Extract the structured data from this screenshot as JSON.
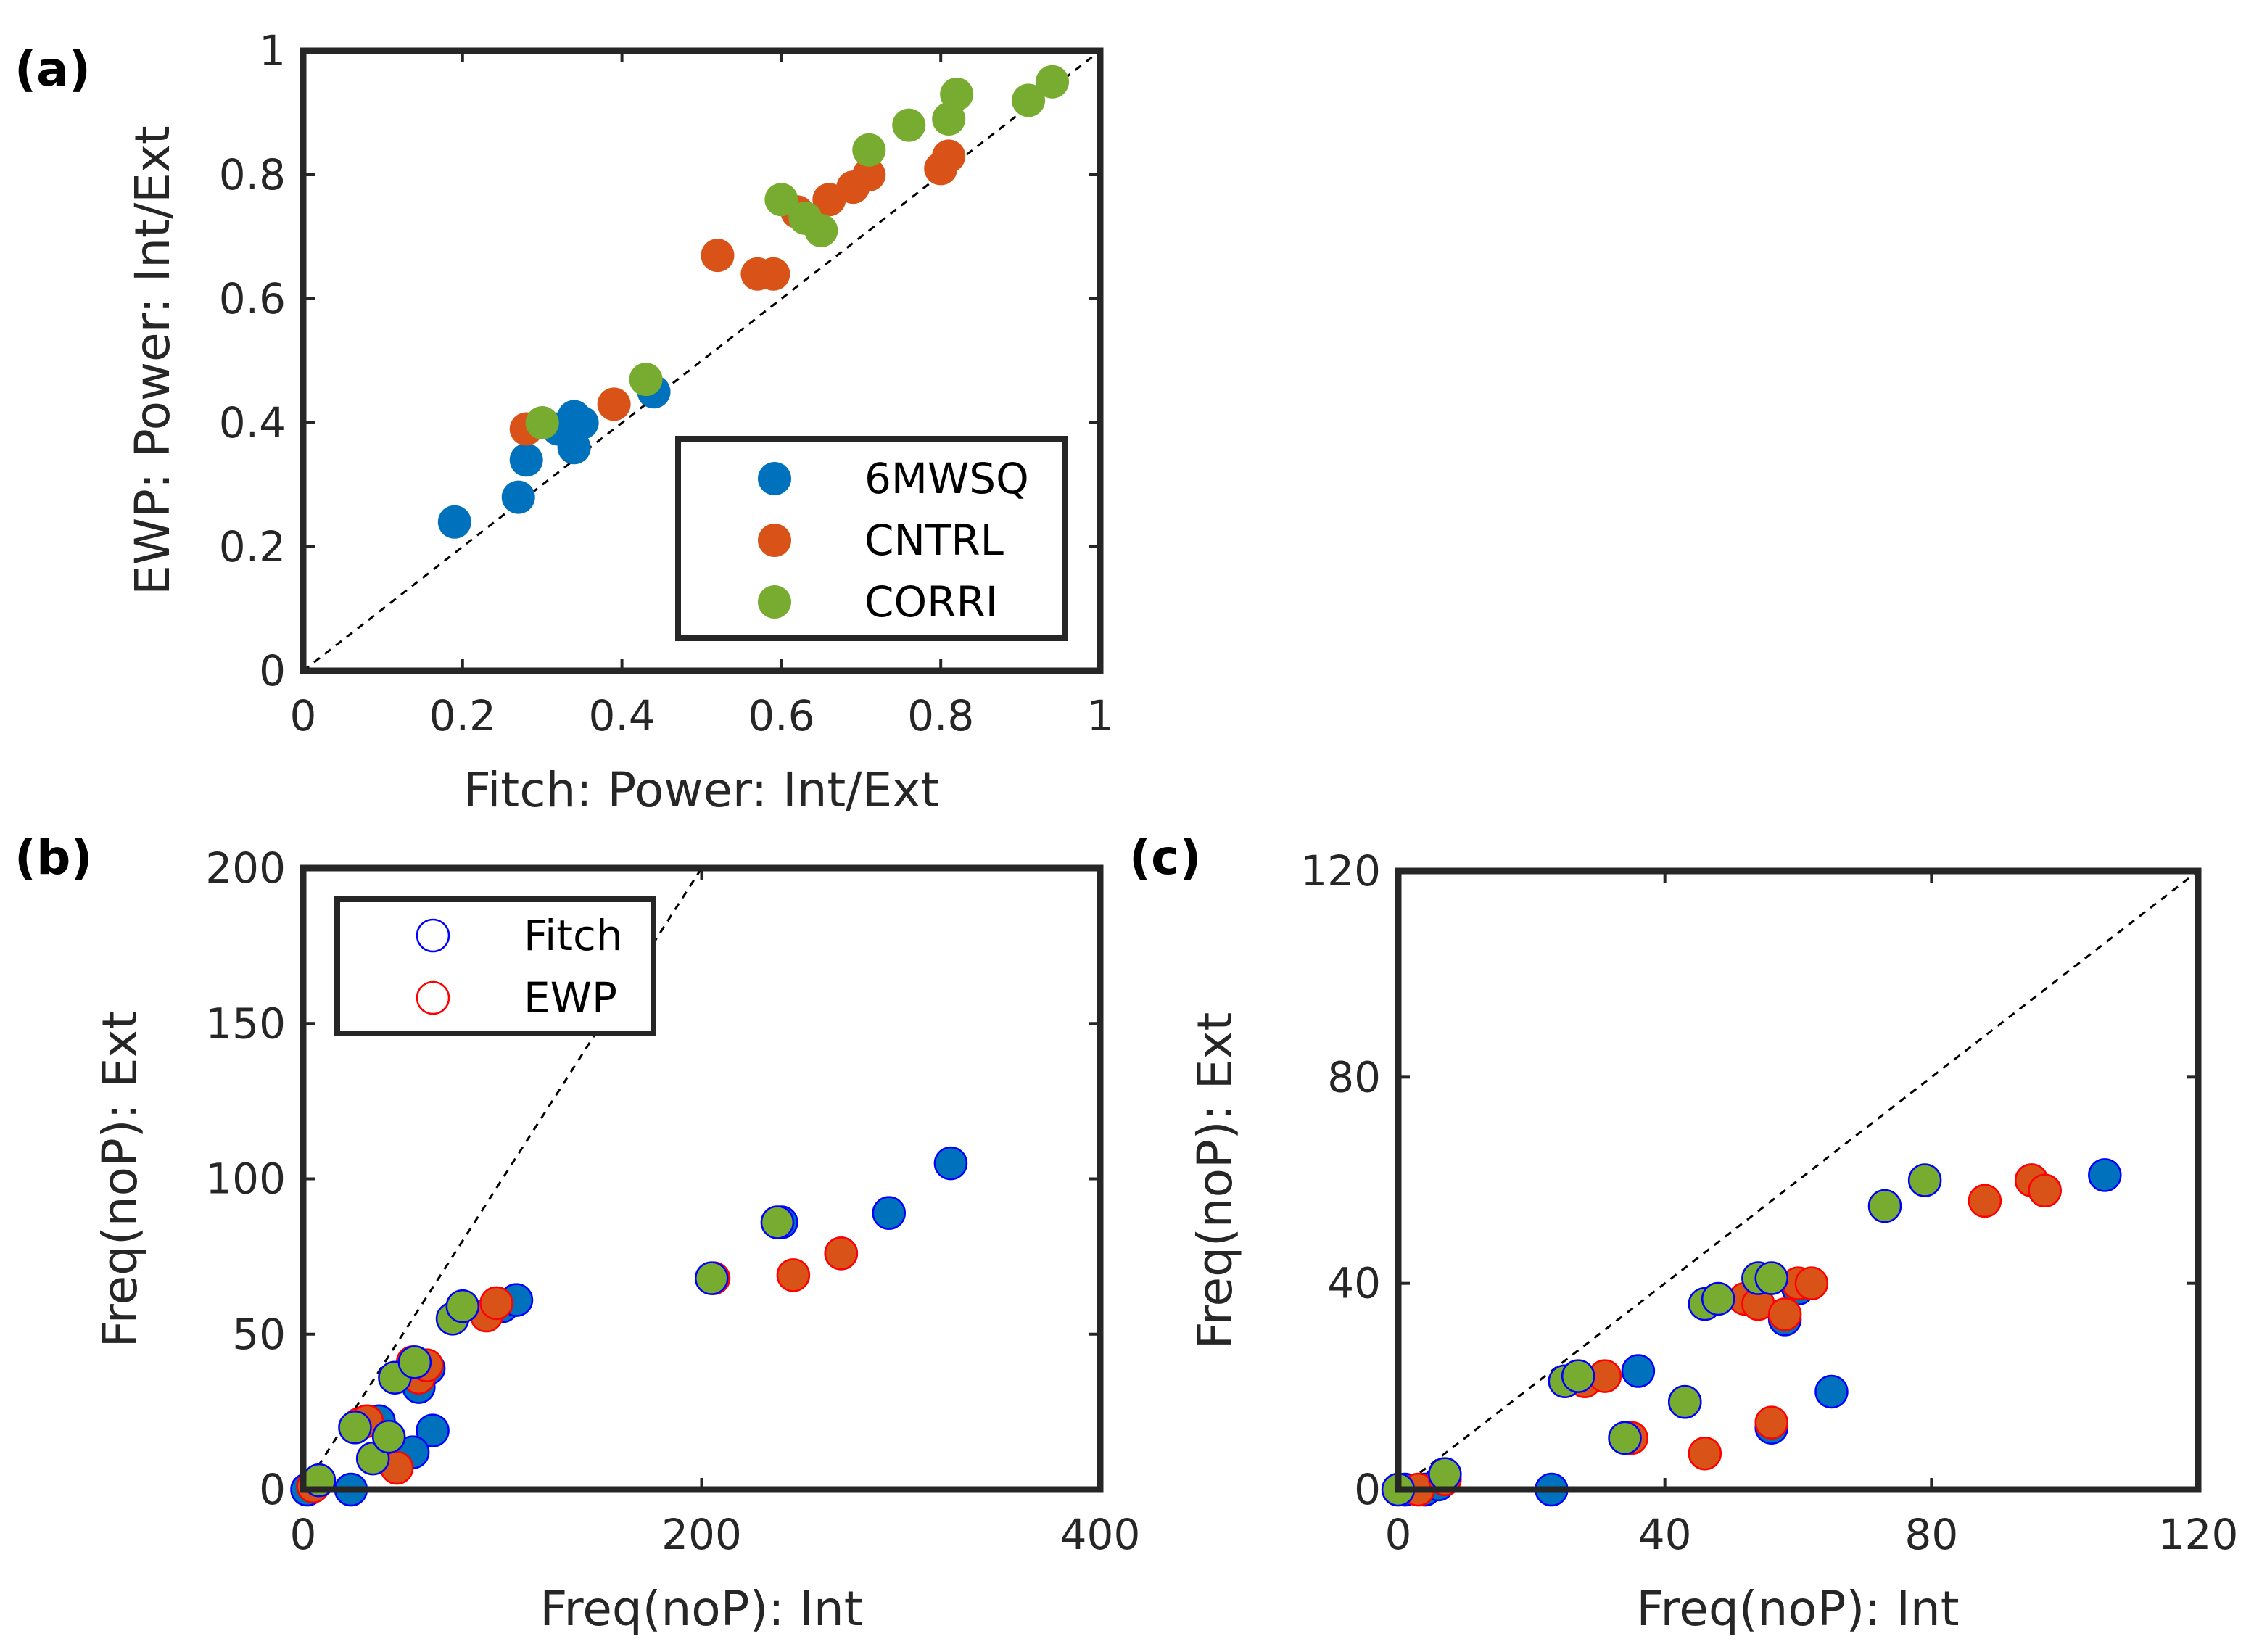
{
  "chart_data": [
    {
      "panel_label": "(a)",
      "type": "scatter",
      "xlabel": "Fitch: Power: Int/Ext",
      "ylabel": "EWP: Power: Int/Ext",
      "xlim": [
        0,
        1
      ],
      "ylim": [
        0,
        1
      ],
      "xticks": [
        0,
        0.2,
        0.4,
        0.6,
        0.8,
        1
      ],
      "yticks": [
        0,
        0.2,
        0.4,
        0.6,
        0.8,
        1
      ],
      "xtick_labels": [
        "0",
        "0.2",
        "0.4",
        "0.6",
        "0.8",
        "1"
      ],
      "ytick_labels": [
        "0",
        "0.2",
        "0.4",
        "0.6",
        "0.8",
        "1"
      ],
      "diagonal": true,
      "legend": "bottom-right",
      "series": [
        {
          "name": "6MWSQ",
          "color": "#0072BD",
          "points": [
            [
              0.19,
              0.24
            ],
            [
              0.27,
              0.28
            ],
            [
              0.28,
              0.34
            ],
            [
              0.32,
              0.39
            ],
            [
              0.34,
              0.41
            ],
            [
              0.35,
              0.4
            ],
            [
              0.34,
              0.36
            ],
            [
              0.44,
              0.45
            ]
          ]
        },
        {
          "name": "CNTRL",
          "color": "#D95319",
          "points": [
            [
              0.28,
              0.39
            ],
            [
              0.39,
              0.43
            ],
            [
              0.52,
              0.67
            ],
            [
              0.57,
              0.64
            ],
            [
              0.59,
              0.64
            ],
            [
              0.62,
              0.74
            ],
            [
              0.66,
              0.76
            ],
            [
              0.69,
              0.78
            ],
            [
              0.71,
              0.8
            ],
            [
              0.8,
              0.81
            ],
            [
              0.81,
              0.83
            ]
          ]
        },
        {
          "name": "CORRI",
          "color": "#77AC30",
          "points": [
            [
              0.3,
              0.4
            ],
            [
              0.43,
              0.47
            ],
            [
              0.6,
              0.76
            ],
            [
              0.63,
              0.73
            ],
            [
              0.65,
              0.71
            ],
            [
              0.71,
              0.84
            ],
            [
              0.76,
              0.88
            ],
            [
              0.81,
              0.89
            ],
            [
              0.82,
              0.93
            ],
            [
              0.91,
              0.92
            ],
            [
              0.94,
              0.95
            ]
          ]
        }
      ]
    },
    {
      "panel_label": "(b)",
      "type": "scatter",
      "xlabel": "Freq(noP): Int",
      "ylabel": "Freq(noP): Ext",
      "xlim": [
        0,
        400
      ],
      "ylim": [
        0,
        200
      ],
      "xticks": [
        0,
        200,
        400
      ],
      "yticks": [
        0,
        50,
        100,
        150,
        200
      ],
      "xtick_labels": [
        "0",
        "200",
        "400"
      ],
      "ytick_labels": [
        "0",
        "50",
        "100",
        "150",
        "200"
      ],
      "diagonal": true,
      "legend": "top-left",
      "legend_entries": [
        {
          "label": "Fitch",
          "color": "#0000FF"
        },
        {
          "label": "EWP",
          "color": "#FF0000"
        }
      ],
      "series": [
        {
          "name": "6MWSQ",
          "color": "#0072BD",
          "edge": "#0000FF",
          "points": [
            [
              2,
              0
            ],
            [
              24,
              0
            ],
            [
              38,
              22
            ],
            [
              65,
              19
            ],
            [
              58,
              33
            ],
            [
              63,
              39
            ],
            [
              55,
              12
            ],
            [
              100,
              59
            ],
            [
              107,
              61
            ],
            [
              240,
              86
            ],
            [
              270,
              76
            ],
            [
              294,
              89
            ],
            [
              325,
              105
            ]
          ]
        },
        {
          "name": "CNTRL",
          "color": "#D95319",
          "edge": "#FF0000",
          "points": [
            [
              5,
              1
            ],
            [
              28,
              21
            ],
            [
              32,
              22
            ],
            [
              47,
              7
            ],
            [
              55,
              41
            ],
            [
              58,
              36
            ],
            [
              62,
              40
            ],
            [
              92,
              56
            ],
            [
              97,
              60
            ],
            [
              246,
              69
            ],
            [
              206,
              68
            ],
            [
              270,
              76
            ]
          ]
        },
        {
          "name": "CORRI",
          "color": "#77AC30",
          "edge": "#0000FF",
          "points": [
            [
              8,
              3
            ],
            [
              26,
              20
            ],
            [
              35,
              10
            ],
            [
              43,
              17
            ],
            [
              46,
              36
            ],
            [
              56,
              41
            ],
            [
              75,
              55
            ],
            [
              80,
              59
            ],
            [
              205,
              68
            ],
            [
              238,
              86
            ]
          ]
        }
      ]
    },
    {
      "panel_label": "(c)",
      "type": "scatter",
      "xlabel": "Freq(noP): Int",
      "ylabel": "Freq(noP): Ext",
      "xlim": [
        0,
        120
      ],
      "ylim": [
        0,
        120
      ],
      "xticks": [
        0,
        40,
        80,
        120
      ],
      "yticks": [
        0,
        40,
        80,
        120
      ],
      "xtick_labels": [
        "0",
        "40",
        "80",
        "120"
      ],
      "ytick_labels": [
        "0",
        "40",
        "80",
        "120"
      ],
      "diagonal": true,
      "series": [
        {
          "name": "6MWSQ",
          "color": "#0072BD",
          "edge": "#0000FF",
          "points": [
            [
              1,
              0
            ],
            [
              4,
              0
            ],
            [
              6,
              1
            ],
            [
              23,
              0
            ],
            [
              36,
              23
            ],
            [
              43,
              17
            ],
            [
              56,
              12
            ],
            [
              58,
              33
            ],
            [
              60,
              39
            ],
            [
              65,
              19
            ],
            [
              95,
              60
            ],
            [
              97,
              58
            ],
            [
              106,
              61
            ]
          ]
        },
        {
          "name": "CNTRL",
          "color": "#D95319",
          "edge": "#FF0000",
          "points": [
            [
              3,
              0
            ],
            [
              7,
              2
            ],
            [
              28,
              21
            ],
            [
              31,
              22
            ],
            [
              35,
              10
            ],
            [
              46,
              7
            ],
            [
              52,
              37
            ],
            [
              54,
              36
            ],
            [
              56,
              13
            ],
            [
              58,
              34
            ],
            [
              60,
              40
            ],
            [
              62,
              40
            ],
            [
              88,
              56
            ],
            [
              95,
              60
            ],
            [
              97,
              58
            ]
          ]
        },
        {
          "name": "CORRI",
          "color": "#77AC30",
          "edge": "#0000FF",
          "points": [
            [
              0,
              0
            ],
            [
              7,
              3
            ],
            [
              25,
              21
            ],
            [
              27,
              22
            ],
            [
              34,
              10
            ],
            [
              43,
              17
            ],
            [
              46,
              36
            ],
            [
              48,
              37
            ],
            [
              54,
              41
            ],
            [
              56,
              41
            ],
            [
              73,
              55
            ],
            [
              79,
              60
            ]
          ]
        }
      ]
    }
  ]
}
